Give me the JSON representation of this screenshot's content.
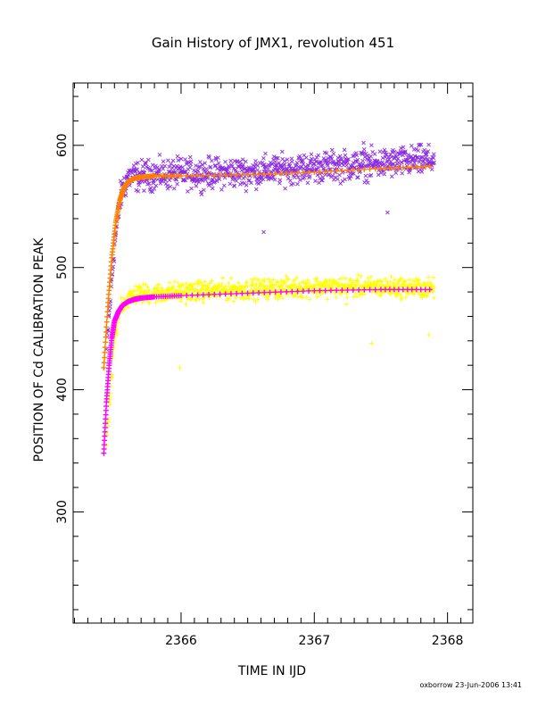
{
  "chart_data": {
    "type": "scatter",
    "title": "Gain History of JMX1, revolution 451",
    "xlabel": "TIME IN IJD",
    "ylabel": "POSITION OF Cd CALIBRATION PEAK",
    "xlim": [
      2365.19,
      2368.19
    ],
    "ylim": [
      209,
      651
    ],
    "xticks": [
      2366,
      2367,
      2368
    ],
    "yticks": [
      300,
      400,
      500,
      600
    ],
    "grid": false,
    "footer": "oxborrow 23-Jun-2006 13:41",
    "series": [
      {
        "kind": "scatter-x",
        "color": "#8a2be2",
        "x_start": 2365.44,
        "x_end": 2367.9,
        "baseline": [
          [
            2365.44,
            432
          ],
          [
            2365.5,
            520
          ],
          [
            2365.55,
            560
          ],
          [
            2365.6,
            574
          ],
          [
            2365.8,
            576
          ],
          [
            2366.5,
            578
          ],
          [
            2367.0,
            582
          ],
          [
            2367.5,
            585
          ],
          [
            2367.9,
            588
          ]
        ],
        "scatter_amplitude": 18,
        "outliers": [
          [
            2366.62,
            529
          ],
          [
            2367.55,
            545
          ],
          [
            2367.37,
            602
          ]
        ]
      },
      {
        "kind": "fit-line",
        "color": "#ff7f00",
        "x": [
          2365.42,
          2365.45,
          2365.48,
          2365.51,
          2365.54,
          2365.57,
          2365.6,
          2365.65,
          2365.7,
          2365.8,
          2366.0,
          2366.5,
          2367.0,
          2367.5,
          2367.9
        ],
        "y": [
          418,
          468,
          508,
          537,
          555,
          565,
          570,
          573,
          574,
          575,
          575,
          576,
          578,
          581,
          583
        ]
      },
      {
        "kind": "scatter-plus",
        "color": "#ffff00",
        "x_start": 2365.44,
        "x_end": 2367.9,
        "baseline": [
          [
            2365.44,
            355
          ],
          [
            2365.5,
            440
          ],
          [
            2365.55,
            470
          ],
          [
            2365.65,
            478
          ],
          [
            2366.0,
            480
          ],
          [
            2366.5,
            482
          ],
          [
            2367.0,
            484
          ],
          [
            2367.5,
            484
          ],
          [
            2367.9,
            483
          ]
        ],
        "scatter_amplitude": 12,
        "outliers": [
          [
            2365.99,
            418
          ],
          [
            2367.43,
            438
          ],
          [
            2367.86,
            445
          ],
          [
            2367.24,
            470
          ]
        ]
      },
      {
        "kind": "fit-line",
        "color": "#ff00ff",
        "x": [
          2365.42,
          2365.44,
          2365.46,
          2365.48,
          2365.5,
          2365.53,
          2365.56,
          2365.6,
          2365.65,
          2365.7,
          2365.8,
          2366.0,
          2366.5,
          2367.0,
          2367.5,
          2367.9
        ],
        "y": [
          348,
          390,
          420,
          442,
          456,
          464,
          469,
          472,
          474,
          475,
          476,
          477,
          479,
          481,
          482,
          482
        ]
      }
    ]
  }
}
